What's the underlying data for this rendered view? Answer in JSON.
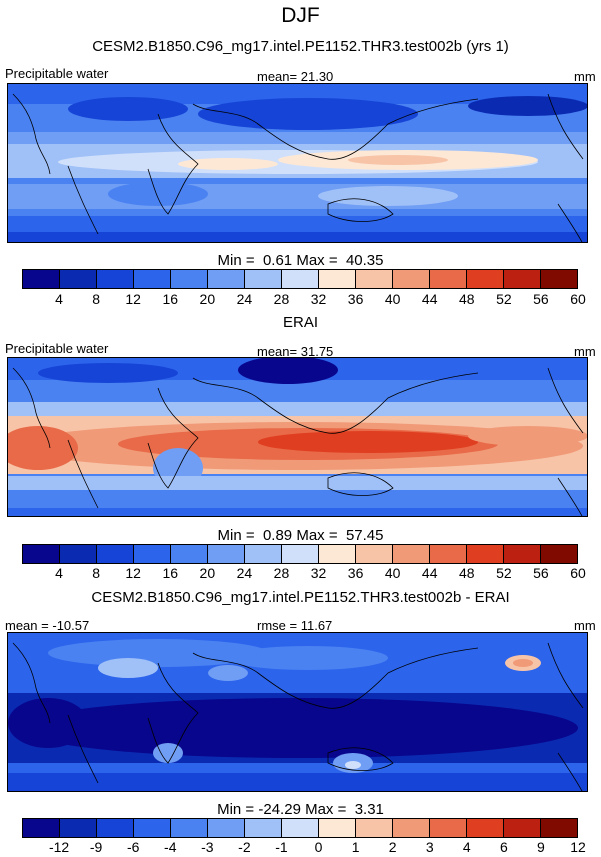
{
  "figure": {
    "season": "DJF",
    "colors": [
      "#08068c",
      "#0a2ab2",
      "#1644d6",
      "#2c64ec",
      "#4a82f2",
      "#709ef4",
      "#a0c0f8",
      "#d0e0fa",
      "#fde8d6",
      "#f8c4a8",
      "#f09a78",
      "#e86a48",
      "#e03e20",
      "#bc2010",
      "#800a00"
    ]
  },
  "chart_data": [
    {
      "type": "heatmap",
      "title": "CESM2.B1850.C96_mg17.intel.PE1152.THR3.test002b (yrs 1)",
      "variable": "Precipitable water",
      "stat_label": "mean=",
      "stat_value": "21.30",
      "units": "mm",
      "min_label": "Min =",
      "min": "0.61",
      "max_label": "Max =",
      "max": "40.35",
      "levels": [
        "4",
        "8",
        "12",
        "16",
        "20",
        "24",
        "28",
        "32",
        "36",
        "40",
        "44",
        "48",
        "52",
        "56",
        "60"
      ]
    },
    {
      "type": "heatmap",
      "title": "ERAI",
      "variable": "Precipitable water",
      "stat_label": "mean=",
      "stat_value": "31.75",
      "units": "mm",
      "min_label": "Min =",
      "min": "0.89",
      "max_label": "Max =",
      "max": "57.45",
      "levels": [
        "4",
        "8",
        "12",
        "16",
        "20",
        "24",
        "28",
        "32",
        "36",
        "40",
        "44",
        "48",
        "52",
        "56",
        "60"
      ]
    },
    {
      "type": "heatmap",
      "title": "CESM2.B1850.C96_mg17.intel.PE1152.THR3.test002b - ERAI",
      "stat1_label": "mean =",
      "stat1_value": "-10.57",
      "stat2_label": "rmse =",
      "stat2_value": "11.67",
      "units": "mm",
      "min_label": "Min =",
      "min": "-24.29",
      "max_label": "Max =",
      "max": "3.31",
      "levels": [
        "-12",
        "-9",
        "-6",
        "-4",
        "-3",
        "-2",
        "-1",
        "0",
        "1",
        "2",
        "3",
        "4",
        "6",
        "9",
        "12"
      ]
    }
  ]
}
